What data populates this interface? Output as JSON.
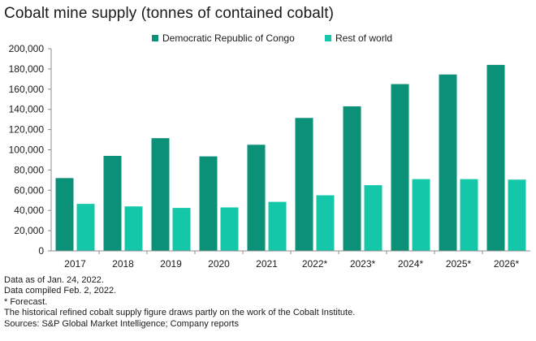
{
  "title": "Cobalt mine supply (tonnes of contained cobalt)",
  "colors": {
    "drc": "#0a9178",
    "row": "#14c7a9",
    "axis": "#8c8c8c"
  },
  "chart_data": {
    "type": "bar",
    "categories": [
      "2017",
      "2018",
      "2019",
      "2020",
      "2021",
      "2022*",
      "2023*",
      "2024*",
      "2025*",
      "2026*"
    ],
    "series": [
      {
        "name": "Democratic Republic of Congo",
        "values": [
          72000,
          94000,
          111500,
          93500,
          105000,
          131500,
          143000,
          165000,
          174500,
          184000
        ]
      },
      {
        "name": "Rest of world",
        "values": [
          46500,
          44000,
          42500,
          43000,
          48500,
          55000,
          65000,
          71000,
          71000,
          70500
        ]
      }
    ],
    "ylim": [
      0,
      200000
    ],
    "yticks": [
      "0",
      "20,000",
      "40,000",
      "60,000",
      "80,000",
      "100,000",
      "120,000",
      "140,000",
      "160,000",
      "180,000",
      "200,000"
    ],
    "legend": "top-center",
    "grid": false,
    "xlabel": "",
    "ylabel": ""
  },
  "notes": [
    "Data as of Jan. 24, 2022.",
    "Data compiled Feb. 2, 2022.",
    "* Forecast.",
    "The historical refined cobalt supply figure draws partly on the work of the Cobalt Institute.",
    "Sources: S&P Global Market Intelligence; Company reports"
  ]
}
